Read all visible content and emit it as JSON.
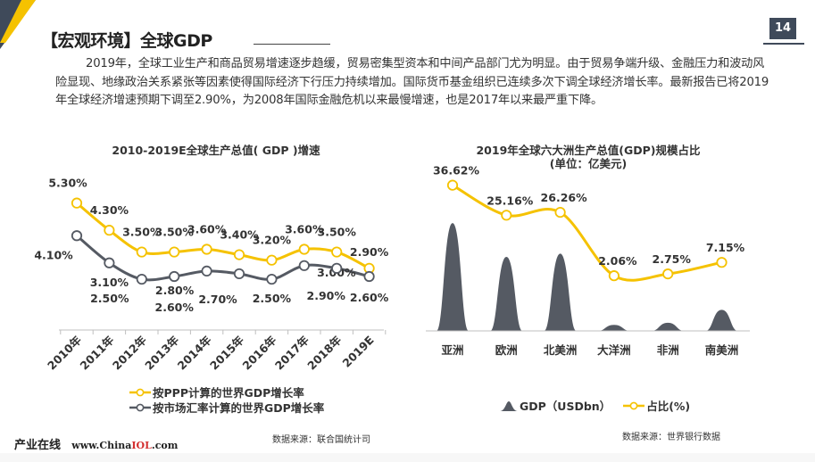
{
  "slide": {
    "title": "【宏观环境】全球GDP",
    "page_number": "14",
    "paragraph": "2019年，全球工业生产和商品贸易增速逐步趋缓，贸易密集型资本和中间产品部门尤为明显。由于贸易争端升级、金融压力和波动风险显现、地缘政治关系紧张等因素使得国际经济下行压力持续增加。国际货币基金组织已连续多次下调全球经济增长率。最新报告已将2019年全球经济增速预期下调至2.90%，为2008年国际金融危机以来最慢增速，也是2017年以来最严重下降。",
    "footer_brand": "产业在线",
    "footer_url_prefix": "www.China",
    "footer_url_red": "IOL",
    "footer_url_suffix": ".com"
  },
  "colors": {
    "accent": "#f5c200",
    "dark": "#555a63",
    "navy": "#3f4a5a"
  },
  "chart_data": [
    {
      "type": "line",
      "title": "2010-2019E全球生产总值( GDP )增速",
      "categories": [
        "2010年",
        "2011年",
        "2012年",
        "2013年",
        "2014年",
        "2015年",
        "2016年",
        "2017年",
        "2018年",
        "2019E"
      ],
      "series": [
        {
          "name": "按PPP计算的世界GDP增长率",
          "values": [
            5.3,
            4.3,
            3.5,
            3.5,
            3.6,
            3.4,
            3.2,
            3.6,
            3.5,
            2.9
          ],
          "labels": [
            "5.30%",
            "4.30%",
            "3.50%",
            "3.50%",
            "3.60%",
            "3.40%",
            "3.20%",
            "3.60%",
            "3.50%",
            "2.90%"
          ]
        },
        {
          "name": "按市场汇率计算的世界GDP增长率",
          "values": [
            4.1,
            3.1,
            2.5,
            2.6,
            2.8,
            2.7,
            2.5,
            3.0,
            2.9,
            2.6
          ],
          "labels": [
            "4.10%",
            "3.10%",
            "2.50%",
            "2.60%",
            "2.80%",
            "2.70%",
            "2.50%",
            "3.00%",
            "2.90%",
            "2.60%"
          ]
        }
      ],
      "ylim": [
        0,
        6
      ],
      "grid": false,
      "legend": "bottom",
      "source": "数据来源：联合国统计司"
    },
    {
      "type": "area",
      "title_line1": "2019年全球六大洲生产总值(GDP)规模占比",
      "title_line2": "(单位：亿美元)",
      "categories": [
        "亚洲",
        "欧洲",
        "北美洲",
        "大洋洲",
        "非洲",
        "南美洲"
      ],
      "series": [
        {
          "name": "GDP（USDbn）",
          "type": "area",
          "values": [
            36.62,
            25.16,
            26.26,
            2.06,
            2.75,
            7.15
          ]
        },
        {
          "name": "占比(%)",
          "type": "line",
          "values": [
            36.62,
            25.16,
            26.26,
            2.06,
            2.75,
            7.15
          ],
          "labels": [
            "36.62%",
            "25.16%",
            "26.26%",
            "2.06%",
            "2.75%",
            "7.15%"
          ]
        }
      ],
      "grid": false,
      "legend": "bottom",
      "source": "数据来源：世界银行数据"
    }
  ]
}
